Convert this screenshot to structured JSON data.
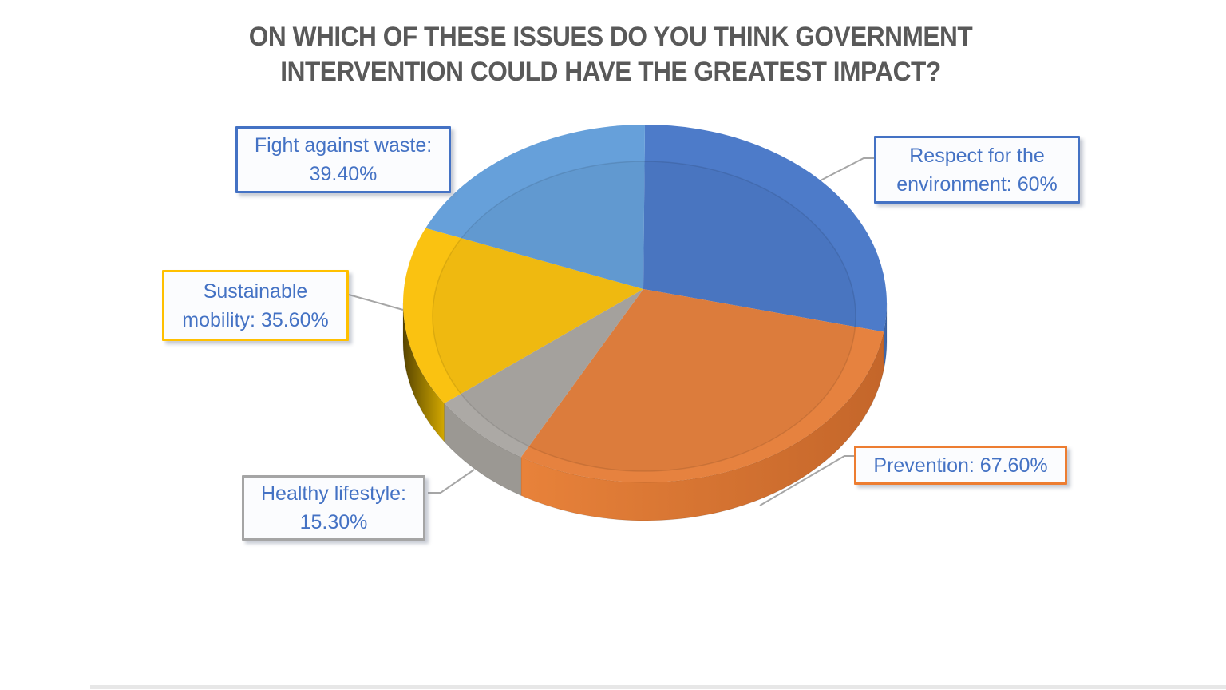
{
  "title": {
    "lines": [
      "ON WHICH OF THESE ISSUES DO YOU THINK GOVERNMENT",
      "INTERVENTION COULD HAVE THE GREATEST IMPACT?"
    ],
    "color": "#595959"
  },
  "chart_data": {
    "type": "pie",
    "style": "3d",
    "title": "ON WHICH OF THESE ISSUES DO YOU THINK GOVERNMENT INTERVENTION COULD HAVE THE GREATEST IMPACT?",
    "legend_position": "callout-data-labels",
    "start_angle_deg": 0,
    "direction": "clockwise",
    "slices": [
      {
        "label": "Respect for the environment",
        "value": 60,
        "display_value": "60%",
        "color_top": "#4D7BC9",
        "color_side": "#3E66A8"
      },
      {
        "label": "Prevention",
        "value": 67.6,
        "display_value": "67.60%",
        "color_top": "#E6823F",
        "color_side": "#CE6D2D",
        "side_gradient": [
          "#E8823A",
          "#C4662A"
        ]
      },
      {
        "label": "Healthy lifestyle",
        "value": 15.3,
        "display_value": "15.30%",
        "color_top": "#ACA9A5",
        "color_side": "#9B9893"
      },
      {
        "label": "Sustainable mobility",
        "value": 35.6,
        "display_value": "35.60%",
        "color_top": "#FAC211",
        "color_side": "#B08A00",
        "side_gradient": [
          "#574400",
          "#D2A800"
        ]
      },
      {
        "label": "Fight against waste",
        "value": 39.4,
        "display_value": "39.40%",
        "color_top": "#66A0DA",
        "color_side": "#5688BE"
      }
    ]
  },
  "callouts": [
    {
      "id": "fight-against-waste",
      "line1": "Fight against waste:",
      "line2": "39.40%",
      "border_color": "#4472C4",
      "text_color": "#4472C4"
    },
    {
      "id": "respect-environment",
      "line1": "Respect for the",
      "line2": "environment: 60%",
      "border_color": "#4472C4",
      "text_color": "#4472C4"
    },
    {
      "id": "sustainable-mobility",
      "line1": "Sustainable",
      "line2": "mobility: 35.60%",
      "border_color": "#FFC000",
      "text_color": "#4472C4"
    },
    {
      "id": "healthy-lifestyle",
      "line1": "Healthy lifestyle:",
      "line2": "15.30%",
      "border_color": "#A5A5A5",
      "text_color": "#4472C4"
    },
    {
      "id": "prevention",
      "line1": "Prevention: 67.60%",
      "line2": "",
      "border_color": "#ED7D31",
      "text_color": "#4472C4"
    }
  ],
  "leader_line_color": "#A6A6A6",
  "bottom_bar_color": "#E7E7E7"
}
